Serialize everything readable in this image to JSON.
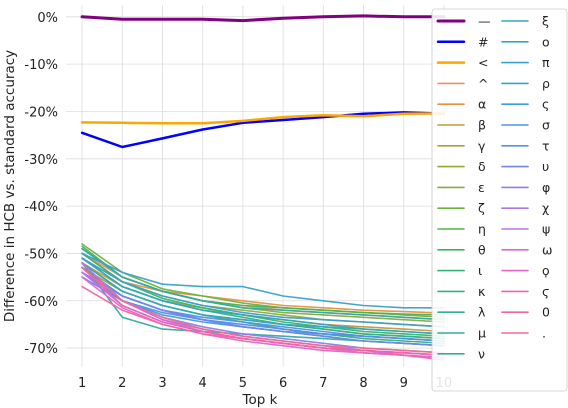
{
  "chart_data": {
    "type": "line",
    "xlabel": "Top k",
    "ylabel": "Difference in HCB vs. standard accuracy",
    "x": [
      1,
      2,
      3,
      4,
      5,
      6,
      7,
      8,
      9,
      10
    ],
    "xlim": [
      0.6,
      10.3
    ],
    "ylim": [
      -74,
      2.5
    ],
    "yticks": [
      0,
      -10,
      -20,
      -30,
      -40,
      -50,
      -60,
      -70
    ],
    "grid": true,
    "legend_position": "top-right",
    "legend_columns": 2,
    "series": [
      {
        "name": "—",
        "color": "#800080",
        "width": 3,
        "values": [
          0,
          -0.5,
          -0.5,
          -0.5,
          -0.8,
          -0.3,
          0,
          0.2,
          0,
          0
        ]
      },
      {
        "name": "#",
        "color": "#0000ff",
        "width": 2.5,
        "values": [
          -24.5,
          -27.5,
          -25.7,
          -23.8,
          -22.4,
          -21.8,
          -21.2,
          -20.5,
          -20.2,
          -20.5
        ]
      },
      {
        "name": "<",
        "color": "#ffa500",
        "width": 2.5,
        "values": [
          -22.3,
          -22.4,
          -22.5,
          -22.5,
          -22.0,
          -21.2,
          -20.8,
          -21.0,
          -20.5,
          -20.4
        ]
      },
      {
        "name": "^",
        "color": "#f48a6a",
        "width": 1.6,
        "values": [
          -50,
          -55,
          -58,
          -60,
          -61,
          -62,
          -62.5,
          -63,
          -63.5,
          -64
        ]
      },
      {
        "name": "α",
        "color": "#e89042",
        "width": 1.6,
        "values": [
          -51,
          -56,
          -58,
          -59,
          -60,
          -61,
          -61.5,
          -62,
          -62.3,
          -62.6
        ]
      },
      {
        "name": "β",
        "color": "#c59a3a",
        "width": 1.6,
        "values": [
          -52,
          -57,
          -60,
          -61.5,
          -63,
          -64,
          -65,
          -65.5,
          -66,
          -66.5
        ]
      },
      {
        "name": "γ",
        "color": "#a8a234",
        "width": 1.6,
        "values": [
          -53,
          -58,
          -61,
          -63,
          -64,
          -65,
          -66,
          -67,
          -67.5,
          -68
        ]
      },
      {
        "name": "δ",
        "color": "#97a838",
        "width": 1.6,
        "values": [
          -50,
          -56,
          -59,
          -61,
          -62,
          -63,
          -64,
          -64.5,
          -65,
          -65.5
        ]
      },
      {
        "name": "ε",
        "color": "#86ad3c",
        "width": 1.6,
        "values": [
          -49,
          -55,
          -58,
          -60,
          -61.5,
          -62.5,
          -63,
          -63.5,
          -64,
          -64.5
        ]
      },
      {
        "name": "ζ",
        "color": "#6bb242",
        "width": 1.6,
        "values": [
          -48,
          -54,
          -57.5,
          -59,
          -60.5,
          -61.5,
          -62,
          -62.5,
          -63,
          -63.5
        ]
      },
      {
        "name": "η",
        "color": "#4fb548",
        "width": 1.6,
        "values": [
          -48.5,
          -55,
          -58,
          -60,
          -61,
          -61.5,
          -62,
          -62.5,
          -62.8,
          -63
        ]
      },
      {
        "name": "θ",
        "color": "#38b566",
        "width": 1.6,
        "values": [
          -50,
          -56,
          -59.5,
          -61.5,
          -63,
          -64.5,
          -65.5,
          -66.5,
          -67,
          -67.5
        ]
      },
      {
        "name": "ι",
        "color": "#35b27a",
        "width": 1.6,
        "values": [
          -52,
          -58,
          -61,
          -63,
          -64.5,
          -66,
          -67,
          -68,
          -68.5,
          -69
        ]
      },
      {
        "name": "κ",
        "color": "#34b08a",
        "width": 1.6,
        "values": [
          -51,
          -57,
          -60,
          -62,
          -63.5,
          -65,
          -66,
          -67,
          -67.5,
          -68
        ]
      },
      {
        "name": "λ",
        "color": "#33ae98",
        "width": 1.6,
        "values": [
          -53,
          -59,
          -62,
          -64,
          -65.5,
          -66.5,
          -67.5,
          -68.5,
          -69,
          -69.5
        ]
      },
      {
        "name": "μ",
        "color": "#32aca3",
        "width": 1.6,
        "values": [
          -52,
          -63.5,
          -66,
          -66.5,
          -67,
          -67.5,
          -68,
          -68.5,
          -69,
          -69.5
        ]
      },
      {
        "name": "ν",
        "color": "#33aaae",
        "width": 1.6,
        "values": [
          -49,
          -55,
          -58,
          -60,
          -61.5,
          -62,
          -62.5,
          -63,
          -63.5,
          -64
        ]
      },
      {
        "name": "ξ",
        "color": "#34a8b8",
        "width": 1.6,
        "values": [
          -51,
          -57,
          -60,
          -62,
          -63,
          -64,
          -65,
          -66,
          -66.5,
          -67
        ]
      },
      {
        "name": "ο",
        "color": "#36a5c2",
        "width": 1.6,
        "values": [
          -52,
          -58,
          -61,
          -63,
          -64,
          -65,
          -65.5,
          -66,
          -66.5,
          -67
        ]
      },
      {
        "name": "π",
        "color": "#38a2cc",
        "width": 1.6,
        "values": [
          -50,
          -54,
          -56.5,
          -57,
          -57,
          -59,
          -60,
          -61,
          -61.5,
          -61.5
        ]
      },
      {
        "name": "ρ",
        "color": "#3a9fd6",
        "width": 1.6,
        "values": [
          -51,
          -56,
          -59,
          -61,
          -62.5,
          -63.5,
          -64,
          -64.5,
          -65,
          -65.5
        ]
      },
      {
        "name": "ς",
        "color": "#3c9ce0",
        "width": 1.6,
        "values": [
          -54,
          -60,
          -63,
          -64.5,
          -65.5,
          -66.5,
          -67,
          -67.5,
          -68,
          -68.5
        ]
      },
      {
        "name": "σ",
        "color": "#4a95e6",
        "width": 1.6,
        "values": [
          -53,
          -59,
          -62,
          -63.5,
          -64.5,
          -65.5,
          -66.5,
          -67.5,
          -68,
          -68.5
        ]
      },
      {
        "name": "τ",
        "color": "#5b8de8",
        "width": 1.6,
        "values": [
          -55,
          -60,
          -62.5,
          -64,
          -65,
          -66,
          -67,
          -67.5,
          -68,
          -68.5
        ]
      },
      {
        "name": "υ",
        "color": "#7585ea",
        "width": 1.6,
        "values": [
          -54,
          -59,
          -62,
          -64,
          -65.5,
          -66.5,
          -67.5,
          -68.5,
          -69,
          -69.5
        ]
      },
      {
        "name": "φ",
        "color": "#8f7eec",
        "width": 1.6,
        "values": [
          -53,
          -60,
          -63.5,
          -65.5,
          -67,
          -68,
          -69,
          -70,
          -70.5,
          -71
        ]
      },
      {
        "name": "χ",
        "color": "#a878ec",
        "width": 1.6,
        "values": [
          -52,
          -60,
          -64,
          -66,
          -67.5,
          -68.5,
          -69.5,
          -70.5,
          -71,
          -71.5
        ]
      },
      {
        "name": "ψ",
        "color": "#c070e6",
        "width": 1.6,
        "values": [
          -54,
          -61,
          -64.5,
          -66.5,
          -68,
          -69,
          -70,
          -70.5,
          -71,
          -71.5
        ]
      },
      {
        "name": "ω",
        "color": "#d66ad8",
        "width": 1.6,
        "values": [
          -52,
          -60,
          -64,
          -66.5,
          -68,
          -69,
          -70,
          -70.5,
          -71.5,
          -72
        ]
      },
      {
        "name": "ϙ",
        "color": "#e466c8",
        "width": 1.6,
        "values": [
          -55,
          -61.5,
          -65,
          -67,
          -68.5,
          -69.5,
          -70.5,
          -71,
          -71.5,
          -72
        ]
      },
      {
        "name": "ϛ",
        "color": "#ec64b6",
        "width": 1.6,
        "values": [
          -53,
          -61,
          -64.5,
          -66.5,
          -68,
          -69,
          -70,
          -71,
          -71.5,
          -72.5
        ]
      },
      {
        "name": "0",
        "color": "#f066a4",
        "width": 1.6,
        "values": [
          -57,
          -62,
          -65,
          -67,
          -68,
          -69,
          -70,
          -70.5,
          -71,
          -71.5
        ]
      },
      {
        "name": ".",
        "color": "#f06c90",
        "width": 1.6,
        "values": [
          -53,
          -60,
          -63.5,
          -66,
          -67.5,
          -68.5,
          -69.5,
          -70,
          -70.5,
          -71
        ]
      }
    ]
  }
}
